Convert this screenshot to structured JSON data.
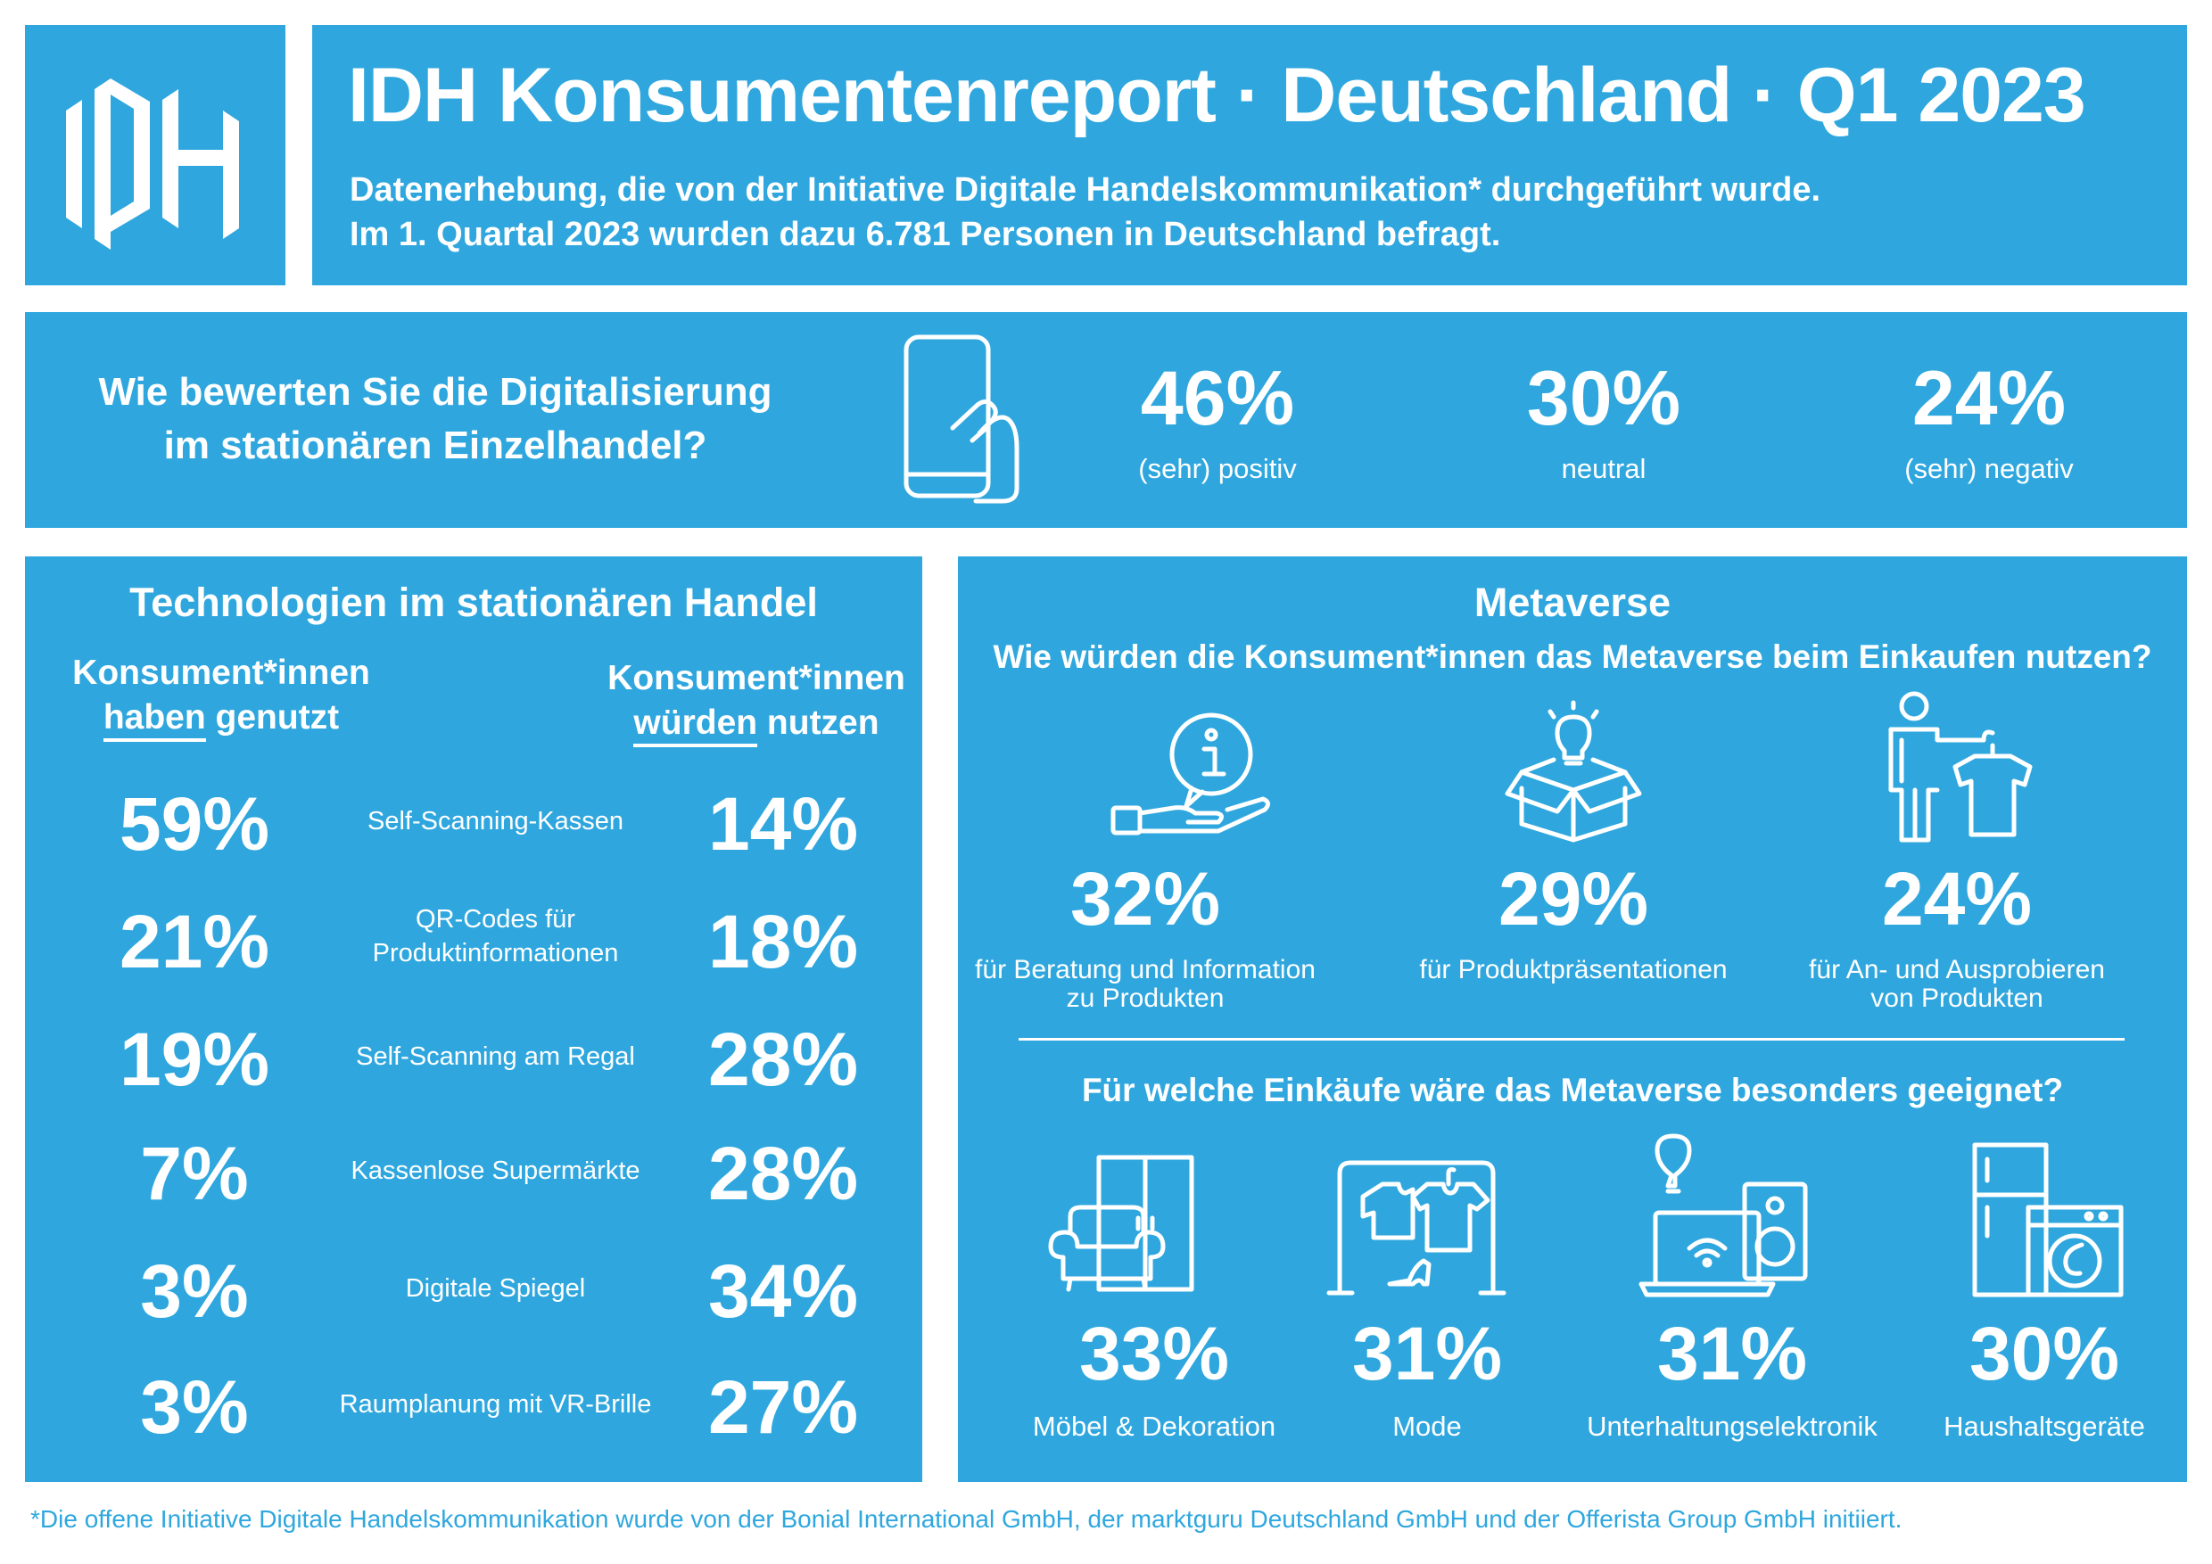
{
  "brand": {
    "logo_text": "IDH",
    "color_primary": "#2fa7de",
    "color_text": "#ffffff"
  },
  "header": {
    "title": "IDH Konsumentenreport · Deutschland · Q1 2023",
    "subtitle_line1": "Datenerhebung, die von der Initiative Digitale Handelskommunikation* durchgeführt wurde.",
    "subtitle_line2": "Im 1. Quartal 2023 wurden dazu 6.781 Personen in Deutschland befragt."
  },
  "rating": {
    "question_line1": "Wie bewerten Sie die Digitalisierung",
    "question_line2": "im stationären Einzelhandel?",
    "icon": "smartphone-touch-icon",
    "items": [
      {
        "value": "46%",
        "label": "(sehr) positiv"
      },
      {
        "value": "30%",
        "label": "neutral"
      },
      {
        "value": "24%",
        "label": "(sehr) negativ"
      }
    ]
  },
  "technologies": {
    "title": "Technologien im stationären Handel",
    "left_header_line1": "Konsument*innen",
    "left_header_underlined": "haben",
    "left_header_rest": " genutzt",
    "right_header_line1": "Konsument*innen",
    "right_header_underlined": "würden",
    "right_header_rest": " nutzen",
    "rows": [
      {
        "used": "59%",
        "label_line1": "Self-Scanning-Kassen",
        "label_line2": "",
        "would_use": "14%"
      },
      {
        "used": "21%",
        "label_line1": "QR-Codes für",
        "label_line2": "Produktinformationen",
        "would_use": "18%"
      },
      {
        "used": "19%",
        "label_line1": "Self-Scanning am Regal",
        "label_line2": "",
        "would_use": "28%"
      },
      {
        "used": "7%",
        "label_line1": "Kassenlose Supermärkte",
        "label_line2": "",
        "would_use": "28%"
      },
      {
        "used": "3%",
        "label_line1": "Digitale Spiegel",
        "label_line2": "",
        "would_use": "34%"
      },
      {
        "used": "3%",
        "label_line1": "Raumplanung mit VR-Brille",
        "label_line2": "",
        "would_use": "27%"
      }
    ]
  },
  "metaverse": {
    "title": "Metaverse",
    "question": "Wie würden die Konsument*innen das Metaverse beim Einkaufen nutzen?",
    "uses": [
      {
        "icon": "info-hand-icon",
        "value": "32%",
        "label_line1": "für Beratung und Information",
        "label_line2": "zu Produkten"
      },
      {
        "icon": "idea-box-icon",
        "value": "29%",
        "label_line1": "für Produktpräsentationen",
        "label_line2": ""
      },
      {
        "icon": "person-shirt-icon",
        "value": "24%",
        "label_line1": "für An- und Ausprobieren",
        "label_line2": "von Produkten"
      }
    ],
    "purchase_question": "Für welche Einkäufe wäre das Metaverse besonders geeignet?",
    "purchases": [
      {
        "icon": "furniture-icon",
        "value": "33%",
        "label": "Möbel & Dekoration"
      },
      {
        "icon": "clothing-rack-icon",
        "value": "31%",
        "label": "Mode"
      },
      {
        "icon": "electronics-icon",
        "value": "31%",
        "label": "Unterhaltungselektronik"
      },
      {
        "icon": "appliances-icon",
        "value": "30%",
        "label": "Haushaltsgeräte"
      }
    ]
  },
  "footnote": "*Die offene Initiative Digitale Handelskommunikation wurde von der Bonial International GmbH, der marktguru Deutschland GmbH und der Offerista Group GmbH initiiert."
}
